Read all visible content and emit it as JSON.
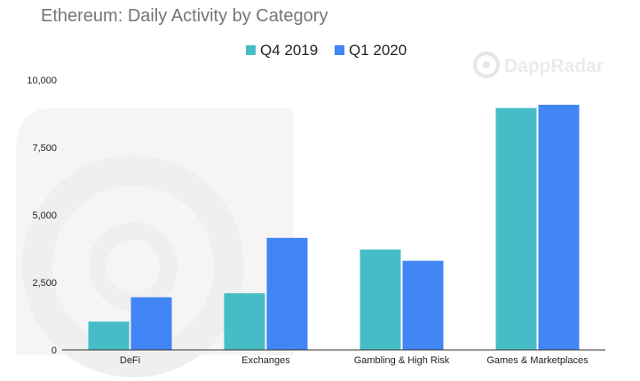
{
  "chart_data": {
    "type": "bar",
    "title": "Ethereum: Daily Activity by Category",
    "categories": [
      "DeFi",
      "Exchanges",
      "Gambling & High Risk",
      "Games & Marketplaces"
    ],
    "series": [
      {
        "name": "Q4 2019",
        "color": "#46bdc6",
        "values": [
          1050,
          2100,
          3720,
          8960
        ]
      },
      {
        "name": "Q1 2020",
        "color": "#4285f4",
        "values": [
          1950,
          4150,
          3300,
          9080
        ]
      }
    ],
    "ylim": [
      0,
      10000
    ],
    "yticks": [
      0,
      2500,
      5000,
      7500,
      10000
    ],
    "ytick_labels": [
      "0",
      "2,500",
      "5,000",
      "7,500",
      "10,000"
    ],
    "xlabel": "",
    "ylabel": "",
    "grid": false,
    "legend_position": "top-center"
  },
  "watermark": {
    "text": "DappRadar",
    "icon": "dappradar-logo-icon"
  }
}
